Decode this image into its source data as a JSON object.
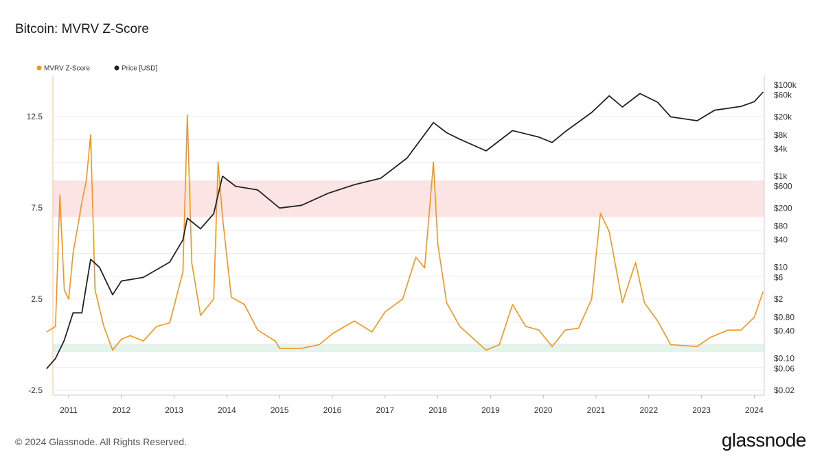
{
  "header": {
    "title": "Bitcoin: MVRV Z-Score"
  },
  "footer": {
    "copyright": "© 2024 Glassnode. All Rights Reserved.",
    "logo": "glassnode"
  },
  "colors": {
    "mvrv": "#f7931a",
    "price": "#222222",
    "red_band": "#fde4e4",
    "green_band": "#e3f5ea",
    "grid": "#ececec"
  },
  "chart_data": {
    "type": "line",
    "title": "Bitcoin: MVRV Z-Score",
    "legend": {
      "placement": "top-left",
      "entries": [
        "MVRV Z-Score",
        "Price [USD]"
      ]
    },
    "x_ticks": [
      "2011",
      "2012",
      "2013",
      "2014",
      "2015",
      "2016",
      "2017",
      "2018",
      "2019",
      "2020",
      "2021",
      "2022",
      "2023",
      "2024"
    ],
    "left_axis": {
      "ticks": [
        "-2.5",
        "2.5",
        "7.5",
        "12.5"
      ],
      "range": [
        -2.5,
        13.5
      ]
    },
    "right_axis": {
      "scale": "log",
      "ticks": [
        "$0.02",
        "$0.06",
        "$0.10",
        "$0.40",
        "$0.80",
        "$2",
        "$6",
        "$10",
        "$40",
        "$80",
        "$200",
        "$600",
        "$1k",
        "$4k",
        "$8k",
        "$20k",
        "$60k",
        "$100k"
      ]
    },
    "bands": [
      {
        "name": "red",
        "range": [
          7.0,
          9.0
        ]
      },
      {
        "name": "green",
        "range": [
          -0.4,
          0.05
        ]
      }
    ],
    "series": [
      {
        "name": "MVRV Z-Score",
        "axis": "left",
        "points": [
          [
            "2010-08",
            0.7
          ],
          [
            "2010-10",
            1.0
          ],
          [
            "2010-11",
            8.2
          ],
          [
            "2010-12",
            3.0
          ],
          [
            "2011-01",
            2.5
          ],
          [
            "2011-02",
            5.0
          ],
          [
            "2011-04",
            7.8
          ],
          [
            "2011-05",
            9.0
          ],
          [
            "2011-06",
            11.5
          ],
          [
            "2011-07",
            3.0
          ],
          [
            "2011-09",
            1.0
          ],
          [
            "2011-11",
            -0.3
          ],
          [
            "2012-01",
            0.3
          ],
          [
            "2012-03",
            0.5
          ],
          [
            "2012-06",
            0.2
          ],
          [
            "2012-09",
            1.0
          ],
          [
            "2012-12",
            1.2
          ],
          [
            "2013-03",
            4.0
          ],
          [
            "2013-04",
            12.6
          ],
          [
            "2013-05",
            4.5
          ],
          [
            "2013-07",
            1.6
          ],
          [
            "2013-10",
            2.5
          ],
          [
            "2013-11",
            10.0
          ],
          [
            "2013-12",
            7.0
          ],
          [
            "2014-02",
            2.6
          ],
          [
            "2014-05",
            2.2
          ],
          [
            "2014-08",
            0.8
          ],
          [
            "2014-12",
            0.2
          ],
          [
            "2015-01",
            -0.2
          ],
          [
            "2015-06",
            -0.2
          ],
          [
            "2015-10",
            0.0
          ],
          [
            "2016-01",
            0.6
          ],
          [
            "2016-06",
            1.3
          ],
          [
            "2016-10",
            0.7
          ],
          [
            "2017-01",
            1.8
          ],
          [
            "2017-05",
            2.5
          ],
          [
            "2017-08",
            4.8
          ],
          [
            "2017-10",
            4.2
          ],
          [
            "2017-12",
            10.0
          ],
          [
            "2018-01",
            5.5
          ],
          [
            "2018-03",
            2.3
          ],
          [
            "2018-06",
            1.0
          ],
          [
            "2018-12",
            -0.3
          ],
          [
            "2019-03",
            0.0
          ],
          [
            "2019-06",
            2.2
          ],
          [
            "2019-09",
            1.0
          ],
          [
            "2019-12",
            0.8
          ],
          [
            "2020-03",
            -0.1
          ],
          [
            "2020-06",
            0.8
          ],
          [
            "2020-09",
            0.9
          ],
          [
            "2020-12",
            2.5
          ],
          [
            "2021-02",
            7.2
          ],
          [
            "2021-04",
            6.2
          ],
          [
            "2021-07",
            2.3
          ],
          [
            "2021-10",
            4.5
          ],
          [
            "2021-12",
            2.3
          ],
          [
            "2022-03",
            1.3
          ],
          [
            "2022-06",
            0.0
          ],
          [
            "2022-12",
            -0.1
          ],
          [
            "2023-03",
            0.4
          ],
          [
            "2023-07",
            0.8
          ],
          [
            "2023-10",
            0.8
          ],
          [
            "2024-01",
            1.5
          ],
          [
            "2024-03",
            2.9
          ]
        ]
      },
      {
        "name": "Price [USD]",
        "axis": "right",
        "points": [
          [
            "2010-08",
            0.06
          ],
          [
            "2010-10",
            0.1
          ],
          [
            "2010-12",
            0.25
          ],
          [
            "2011-02",
            1.0
          ],
          [
            "2011-04",
            1.0
          ],
          [
            "2011-06",
            15
          ],
          [
            "2011-08",
            10
          ],
          [
            "2011-11",
            2.5
          ],
          [
            "2012-01",
            5
          ],
          [
            "2012-06",
            6
          ],
          [
            "2012-12",
            13
          ],
          [
            "2013-03",
            40
          ],
          [
            "2013-04",
            120
          ],
          [
            "2013-07",
            70
          ],
          [
            "2013-10",
            150
          ],
          [
            "2013-12",
            1000
          ],
          [
            "2014-03",
            600
          ],
          [
            "2014-08",
            500
          ],
          [
            "2015-01",
            200
          ],
          [
            "2015-06",
            230
          ],
          [
            "2015-12",
            420
          ],
          [
            "2016-06",
            650
          ],
          [
            "2016-12",
            900
          ],
          [
            "2017-06",
            2500
          ],
          [
            "2017-12",
            15000
          ],
          [
            "2018-03",
            9000
          ],
          [
            "2018-06",
            6500
          ],
          [
            "2018-12",
            3600
          ],
          [
            "2019-06",
            10000
          ],
          [
            "2019-12",
            7200
          ],
          [
            "2020-03",
            5500
          ],
          [
            "2020-06",
            9500
          ],
          [
            "2020-12",
            25000
          ],
          [
            "2021-04",
            58000
          ],
          [
            "2021-07",
            33000
          ],
          [
            "2021-11",
            65000
          ],
          [
            "2022-03",
            42000
          ],
          [
            "2022-06",
            20000
          ],
          [
            "2022-12",
            16500
          ],
          [
            "2023-04",
            28000
          ],
          [
            "2023-10",
            34000
          ],
          [
            "2024-01",
            43000
          ],
          [
            "2024-03",
            70000
          ]
        ]
      }
    ]
  }
}
